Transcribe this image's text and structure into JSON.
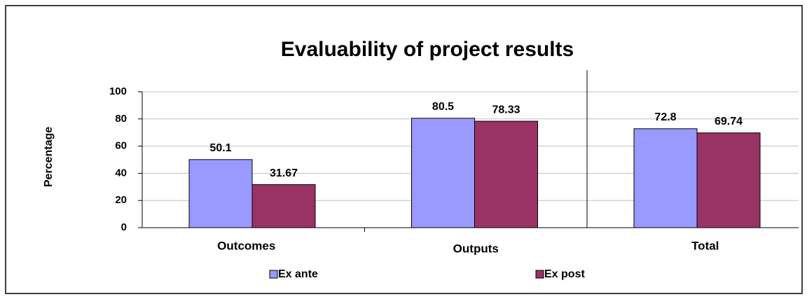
{
  "chart_data": {
    "type": "bar",
    "title": "Evaluability of project results",
    "y_label": "Percentage",
    "categories": [
      "Outcomes",
      "Outputs",
      "Total"
    ],
    "series": [
      {
        "name": "Ex ante",
        "color": "#9999ff",
        "values": [
          50.1,
          80.5,
          72.8
        ]
      },
      {
        "name": "Ex post",
        "color": "#993366",
        "values": [
          31.67,
          78.33,
          69.74
        ]
      }
    ],
    "ylim": [
      0,
      100
    ],
    "yticks": [
      0,
      20,
      40,
      60,
      80,
      100
    ],
    "grid": true,
    "legend": "bottom"
  }
}
